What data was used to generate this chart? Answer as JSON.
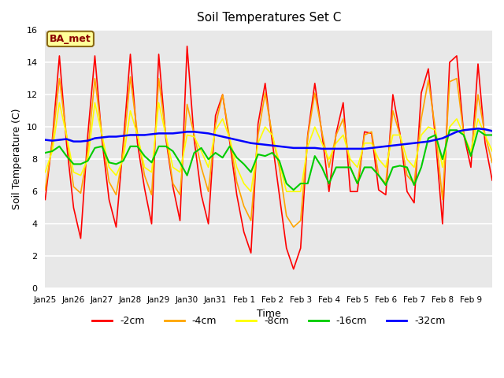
{
  "title": "Soil Temperatures Set C",
  "xlabel": "Time",
  "ylabel": "Soil Temperature (C)",
  "annotation": "BA_met",
  "ylim": [
    0,
    16
  ],
  "yticks": [
    0,
    2,
    4,
    6,
    8,
    10,
    12,
    14,
    16
  ],
  "xtick_labels": [
    "Jan 25",
    "Jan 26",
    "Jan 27",
    "Jan 28",
    "Jan 29",
    "Jan 30",
    "Jan 31",
    "Feb 1",
    "Feb 2",
    "Feb 3",
    "Feb 4",
    "Feb 5",
    "Feb 6",
    "Feb 7",
    "Feb 8",
    "Feb 9"
  ],
  "bg_color": "#e8e8e8",
  "fig_bg_color": "#ffffff",
  "n_per_day": 4,
  "series": {
    "-2cm": {
      "color": "#ff0000",
      "linewidth": 1.2,
      "data": [
        5.5,
        9.2,
        14.4,
        9.0,
        5.0,
        3.1,
        9.5,
        14.4,
        9.2,
        5.5,
        3.8,
        9.0,
        14.5,
        9.0,
        6.2,
        4.0,
        14.5,
        9.3,
        6.3,
        4.2,
        15.0,
        9.2,
        5.8,
        4.0,
        10.7,
        12.0,
        9.1,
        5.8,
        3.5,
        2.2,
        10.2,
        12.7,
        9.1,
        5.8,
        2.5,
        1.2,
        2.5,
        9.5,
        12.7,
        9.6,
        6.0,
        9.6,
        11.5,
        6.0,
        6.0,
        9.7,
        9.6,
        6.1,
        5.8,
        12.0,
        9.6,
        6.0,
        5.3,
        12.1,
        13.6,
        9.3,
        4.0,
        14.0,
        14.4,
        9.5,
        7.5,
        13.9,
        9.0,
        6.7
      ]
    },
    "-4cm": {
      "color": "#ffa500",
      "linewidth": 1.2,
      "data": [
        6.1,
        9.0,
        13.0,
        9.5,
        6.3,
        5.9,
        8.5,
        13.0,
        9.5,
        6.6,
        5.8,
        8.5,
        13.1,
        9.6,
        7.0,
        5.8,
        13.0,
        9.5,
        6.5,
        5.8,
        11.4,
        9.5,
        7.5,
        6.0,
        10.1,
        12.0,
        9.3,
        6.6,
        5.1,
        4.2,
        9.5,
        12.1,
        9.5,
        7.5,
        4.5,
        3.8,
        4.2,
        9.4,
        12.1,
        9.7,
        7.5,
        9.5,
        10.5,
        7.5,
        6.5,
        9.5,
        9.7,
        7.0,
        6.5,
        11.0,
        9.5,
        7.0,
        6.5,
        10.5,
        12.9,
        9.8,
        5.5,
        12.8,
        13.0,
        9.5,
        8.2,
        12.0,
        9.5,
        7.8
      ]
    },
    "-8cm": {
      "color": "#ffff00",
      "linewidth": 1.2,
      "data": [
        7.2,
        8.5,
        11.5,
        9.5,
        7.2,
        7.0,
        8.0,
        11.5,
        9.5,
        7.5,
        7.0,
        8.0,
        11.0,
        9.5,
        7.5,
        7.2,
        11.5,
        9.5,
        7.5,
        7.2,
        9.5,
        9.4,
        8.5,
        7.5,
        9.8,
        10.5,
        9.3,
        7.5,
        6.5,
        6.0,
        9.0,
        10.0,
        9.5,
        7.8,
        6.0,
        6.0,
        6.0,
        8.8,
        10.0,
        9.0,
        8.0,
        9.0,
        9.5,
        8.0,
        7.5,
        9.0,
        9.0,
        8.0,
        7.5,
        9.5,
        9.5,
        8.0,
        7.5,
        9.5,
        10.0,
        9.8,
        7.5,
        10.0,
        10.5,
        9.5,
        8.5,
        10.5,
        9.5,
        8.5
      ]
    },
    "-16cm": {
      "color": "#00cc00",
      "linewidth": 1.5,
      "data": [
        8.4,
        8.5,
        8.8,
        8.2,
        7.7,
        7.7,
        7.9,
        8.7,
        8.8,
        7.8,
        7.7,
        7.9,
        8.8,
        8.8,
        8.2,
        7.8,
        8.8,
        8.8,
        8.5,
        7.8,
        7.0,
        8.4,
        8.7,
        8.0,
        8.4,
        8.1,
        8.8,
        8.1,
        7.7,
        7.2,
        8.3,
        8.2,
        8.4,
        7.9,
        6.5,
        6.1,
        6.5,
        6.5,
        8.2,
        7.5,
        6.5,
        7.5,
        7.5,
        7.5,
        6.5,
        7.5,
        7.5,
        7.0,
        6.4,
        7.5,
        7.6,
        7.5,
        6.4,
        7.5,
        9.3,
        9.5,
        8.0,
        9.8,
        9.8,
        9.5,
        8.2,
        9.8,
        9.5,
        9.5
      ]
    },
    "-32cm": {
      "color": "#0000ff",
      "linewidth": 1.8,
      "data": [
        9.2,
        9.15,
        9.2,
        9.25,
        9.1,
        9.1,
        9.15,
        9.3,
        9.35,
        9.4,
        9.4,
        9.45,
        9.5,
        9.5,
        9.5,
        9.55,
        9.6,
        9.6,
        9.6,
        9.65,
        9.7,
        9.7,
        9.65,
        9.6,
        9.5,
        9.4,
        9.3,
        9.2,
        9.1,
        9.0,
        8.95,
        8.9,
        8.85,
        8.8,
        8.75,
        8.7,
        8.7,
        8.7,
        8.7,
        8.65,
        8.65,
        8.65,
        8.65,
        8.65,
        8.65,
        8.65,
        8.7,
        8.75,
        8.8,
        8.85,
        8.9,
        8.95,
        9.0,
        9.05,
        9.1,
        9.2,
        9.3,
        9.5,
        9.7,
        9.8,
        9.85,
        9.9,
        9.85,
        9.75
      ]
    }
  },
  "legend_order": [
    "-2cm",
    "-4cm",
    "-8cm",
    "-16cm",
    "-32cm"
  ],
  "legend_colors": [
    "#ff0000",
    "#ffa500",
    "#ffff00",
    "#00cc00",
    "#0000ff"
  ]
}
